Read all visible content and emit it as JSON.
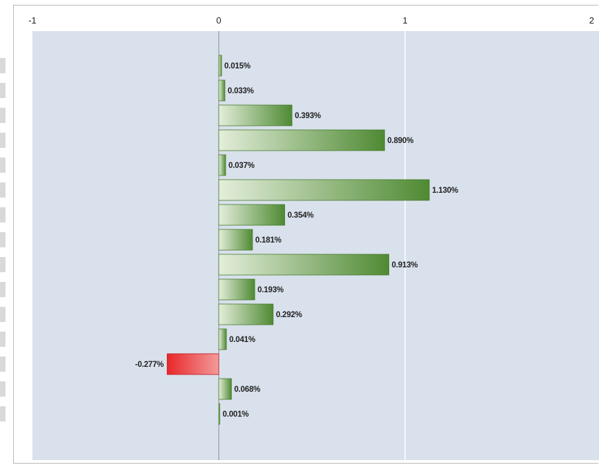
{
  "chart_data": {
    "type": "bar",
    "orientation": "horizontal",
    "values": [
      0.015,
      0.033,
      0.393,
      0.89,
      0.037,
      1.13,
      0.354,
      0.181,
      0.913,
      0.193,
      0.292,
      0.041,
      -0.277,
      0.068,
      0.001
    ],
    "value_labels": [
      "0.015%",
      "0.033%",
      "0.393%",
      "0.890%",
      "0.037%",
      "1.130%",
      "0.354%",
      "0.181%",
      "0.913%",
      "0.193%",
      "0.292%",
      "0.041%",
      "-0.277%",
      "0.068%",
      "0.001%"
    ],
    "x_ticks": [
      "-1",
      "0",
      "1",
      "2"
    ],
    "xlim": [
      -1,
      2
    ],
    "grid": true,
    "axis_position": "top",
    "colors": {
      "plot_background": "#d9e1ec",
      "positive_light": "#e4eedb",
      "positive_dark": "#4f8a33",
      "positive_border": "#467a2c",
      "negative_light": "#f39a9a",
      "negative_dark": "#e8272a",
      "negative_border": "#c0141a",
      "gridline": "#ffffff",
      "zero_line": "#8a8a8a"
    }
  }
}
